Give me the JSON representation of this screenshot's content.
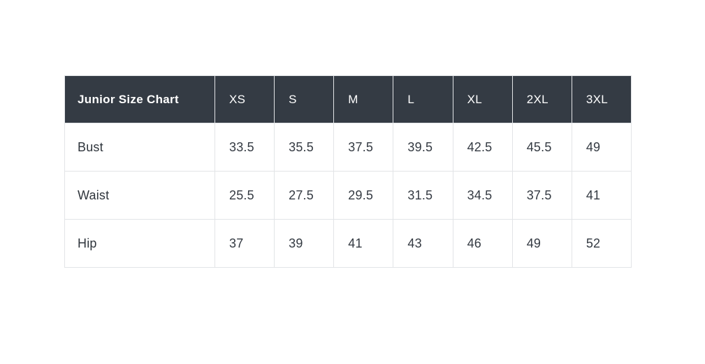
{
  "size_chart": {
    "title": "Junior Size Chart",
    "sizes": [
      "XS",
      "S",
      "M",
      "L",
      "XL",
      "2XL",
      "3XL"
    ],
    "rows": [
      {
        "label": "Bust",
        "values": [
          "33.5",
          "35.5",
          "37.5",
          "39.5",
          "42.5",
          "45.5",
          "49"
        ]
      },
      {
        "label": "Waist",
        "values": [
          "25.5",
          "27.5",
          "29.5",
          "31.5",
          "34.5",
          "37.5",
          "41"
        ]
      },
      {
        "label": "Hip",
        "values": [
          "37",
          "39",
          "41",
          "43",
          "46",
          "49",
          "52"
        ]
      }
    ],
    "colors": {
      "header_bg": "#343b44",
      "header_text": "#ffffff",
      "body_text": "#343a42",
      "border": "#e2e4e7",
      "page_bg": "#ffffff"
    }
  },
  "chart_data": {
    "type": "table",
    "title": "Junior Size Chart",
    "columns": [
      "XS",
      "S",
      "M",
      "L",
      "XL",
      "2XL",
      "3XL"
    ],
    "rows": [
      {
        "label": "Bust",
        "values": [
          33.5,
          35.5,
          37.5,
          39.5,
          42.5,
          45.5,
          49
        ]
      },
      {
        "label": "Waist",
        "values": [
          25.5,
          27.5,
          29.5,
          31.5,
          34.5,
          37.5,
          41
        ]
      },
      {
        "label": "Hip",
        "values": [
          37,
          39,
          41,
          43,
          46,
          49,
          52
        ]
      }
    ],
    "layout": {
      "header_style": "dark",
      "grid": true,
      "text_align": "left"
    }
  }
}
